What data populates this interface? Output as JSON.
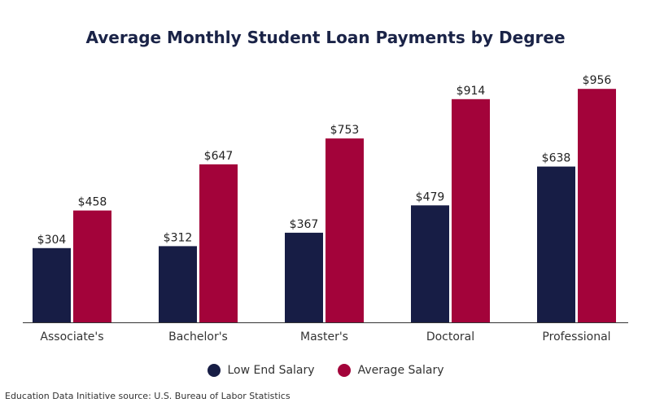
{
  "colors": {
    "series1": "#171d45",
    "series2": "#a3033a",
    "text": "#333333",
    "axis": "#333333"
  },
  "chart_data": {
    "type": "bar",
    "title": "Average Monthly Student Loan Payments by Degree",
    "categories": [
      "Associate's",
      "Bachelor's",
      "Master's",
      "Doctoral",
      "Professional"
    ],
    "series": [
      {
        "name": "Low End Salary",
        "values": [
          304,
          312,
          367,
          479,
          638
        ],
        "labels": [
          "$304",
          "$312",
          "$367",
          "$479",
          "$638"
        ]
      },
      {
        "name": "Average Salary",
        "values": [
          458,
          647,
          753,
          914,
          956
        ],
        "labels": [
          "$458",
          "$647",
          "$753",
          "$914",
          "$956"
        ]
      }
    ],
    "ylim": [
      0,
      1000
    ],
    "grid": false,
    "legend": "bottom"
  },
  "footer": {
    "source": "Education Data Initiative source: U.S. Bureau of Labor Statistics"
  }
}
